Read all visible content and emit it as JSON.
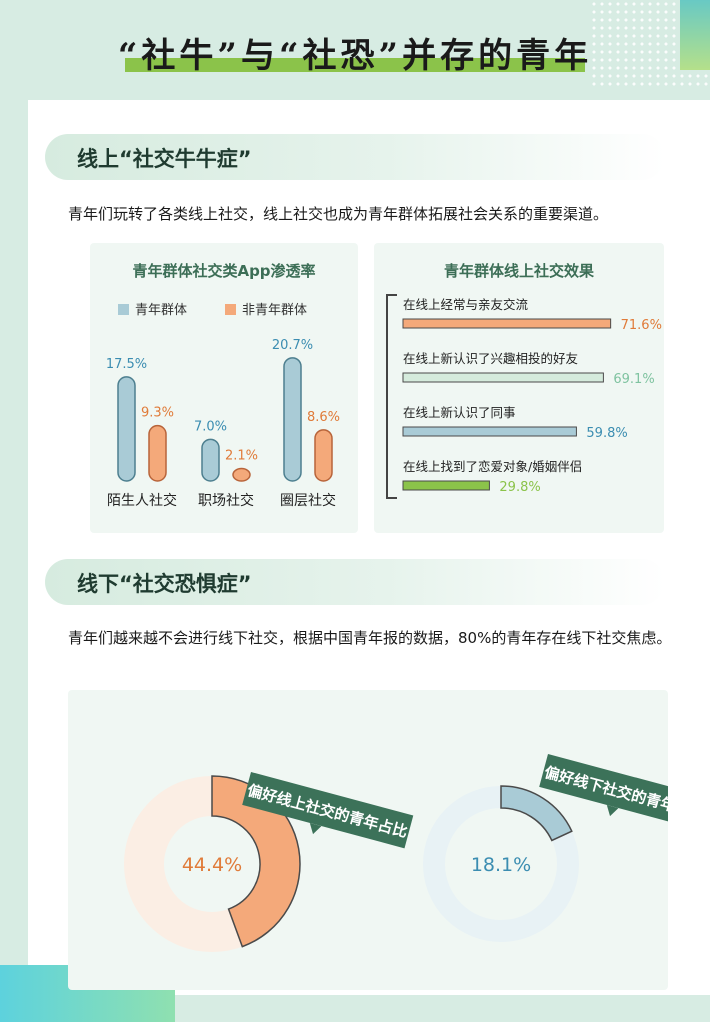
{
  "header": {
    "title": "“社牛”与“社恐”并存的青年"
  },
  "section1": {
    "heading": "线上“社交牛牛症”",
    "intro": "青年们玩转了各类线上社交，线上社交也成为青年群体拓展社会关系的重要渠道。"
  },
  "section2": {
    "heading": "线下“社交恐惧症”",
    "intro": "青年们越来越不会进行线下社交，根据中国青年报的数据，80%的青年存在线下社交焦虑。"
  },
  "colors": {
    "youth": "#a9cbd6",
    "non_youth": "#f4a97a",
    "bar_blue": "#a9cbd6",
    "bar_orange": "#f4a97a",
    "bar_green_light": "#d5ebdc",
    "bar_green": "#8bc34a",
    "label_orange": "#e07b39",
    "label_blue": "#3b8db1",
    "label_green": "#8bc34a",
    "label_green_light": "#7fc3a0"
  },
  "chart_data": [
    {
      "type": "bar",
      "title": "青年群体社交类App渗透率",
      "categories": [
        "陌生人社交",
        "职场社交",
        "圈层社交"
      ],
      "series": [
        {
          "name": "青年群体",
          "values": [
            17.5,
            7.0,
            20.7
          ],
          "labels": [
            "17.5%",
            "7.0%",
            "20.7%"
          ]
        },
        {
          "name": "非青年群体",
          "values": [
            9.3,
            2.1,
            8.6
          ],
          "labels": [
            "9.3%",
            "2.1%",
            "8.6%"
          ]
        }
      ],
      "legend_position": "top"
    },
    {
      "type": "bar",
      "orientation": "horizontal",
      "title": "青年群体线上社交效果",
      "categories": [
        "在线上经常与亲友交流",
        "在线上新认识了兴趣相投的好友",
        "在线上新认识了同事",
        "在线上找到了恋爱对象/婚姻伴侣"
      ],
      "values": [
        71.6,
        69.1,
        59.8,
        29.8
      ],
      "labels": [
        "71.6%",
        "69.1%",
        "59.8%",
        "29.8%"
      ]
    },
    {
      "type": "pie",
      "title": "偏好线上社交的青年占比",
      "values": [
        44.4
      ],
      "labels": [
        "44.4%"
      ]
    },
    {
      "type": "pie",
      "title": "偏好线下社交的青年占比",
      "values": [
        18.1
      ],
      "labels": [
        "18.1%"
      ]
    }
  ]
}
